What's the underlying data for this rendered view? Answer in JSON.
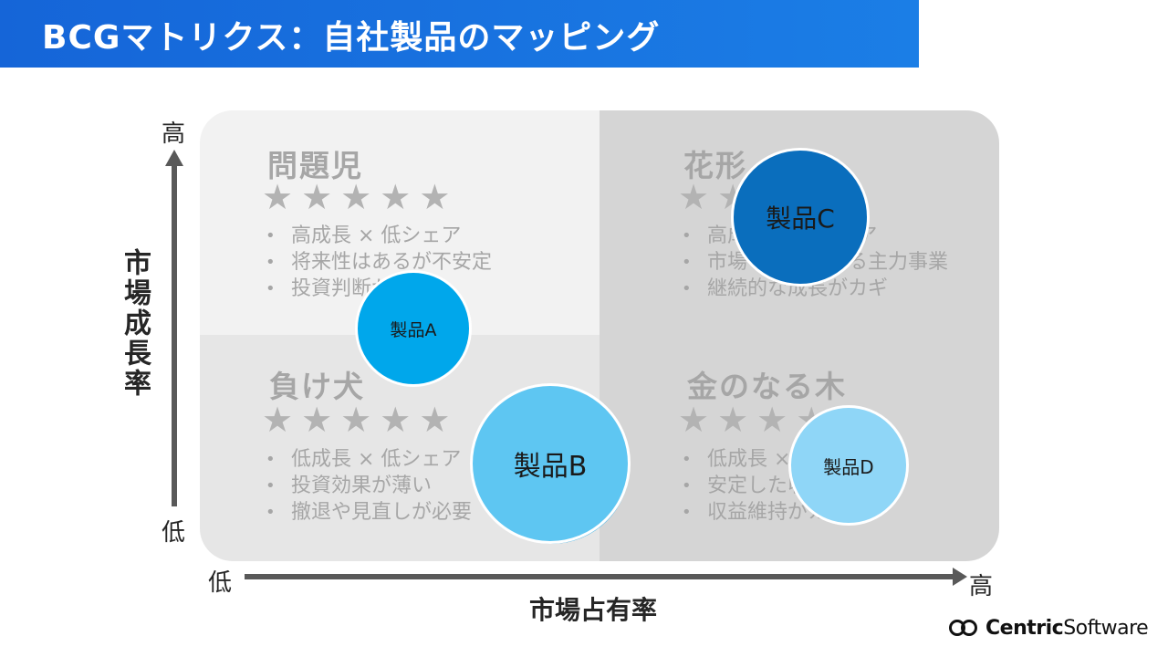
{
  "title": "BCGマトリクス：自社製品のマッピング",
  "quadrants": {
    "top_left": {
      "title": "問題児",
      "stars": [
        "★",
        "★",
        "★",
        "★",
        "★"
      ],
      "bullets": [
        "高成長 × 低シェア",
        "将来性はあるが不安定",
        "投資判断が重要"
      ]
    },
    "top_right": {
      "title": "花形",
      "stars": [
        "★",
        "★",
        "★",
        "★",
        "★"
      ],
      "bullets": [
        "高成長 × 高シェア",
        "市場をリードする主力事業",
        "継続的な成長がカギ"
      ]
    },
    "bottom_left": {
      "title": "負け犬",
      "stars": [
        "★",
        "★",
        "★",
        "★",
        "★"
      ],
      "bullets": [
        "低成長 × 低シェア",
        "投資効果が薄い",
        "撤退や見直しが必要"
      ]
    },
    "bottom_right": {
      "title": "金のなる木",
      "stars": [
        "★",
        "★",
        "★",
        "★",
        "★"
      ],
      "bullets": [
        "低成長 × 高シェア",
        "安定した収益源",
        "収益維持がカギ"
      ]
    }
  },
  "products": [
    {
      "label": "製品A",
      "color": "#00a7eb"
    },
    {
      "label": "製品B",
      "color": "#5ec6f2"
    },
    {
      "label": "製品C",
      "color": "#0a6ebd"
    },
    {
      "label": "製品D",
      "color": "#8fd6f7"
    }
  ],
  "axes": {
    "y_title": "市場成長率",
    "y_high": "高",
    "y_low": "低",
    "x_title": "市場占有率",
    "x_low": "低",
    "x_high": "高"
  },
  "logo": {
    "text_bold": "Centric",
    "text_regular": "Software"
  }
}
